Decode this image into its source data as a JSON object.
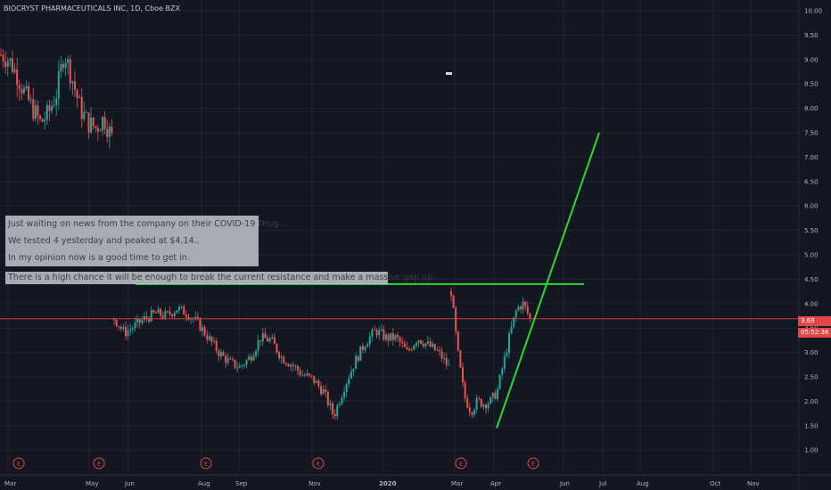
{
  "header": {
    "title": "BIOCRYST PHARMACEUTICALS INC, 1D, Cboe BZX"
  },
  "annotations": [
    "Just waiting on news from the company on their COVID-19 Drug...",
    "We tested 4 yesterday and peaked at $4.14..",
    "In my opinion now is a good time to get in.",
    "There is a high chance it will be enough to break the current resistance and make a massive gap up."
  ],
  "price_axis": {
    "current_price_label": "3.69",
    "countdown_label": "05:52:36"
  },
  "colors": {
    "background": "#131722",
    "grid": "#1f2430",
    "up": "#26a69a",
    "down": "#ef5350",
    "trendline": "#2ed82e",
    "price_line": "#e04848",
    "earnings": "#e04848"
  },
  "chart_data": {
    "type": "candlestick",
    "title": "BIOCRYST PHARMACEUTICALS INC, 1D, Cboe BZX",
    "ylim": [
      0.7,
      10.2
    ],
    "y_ticks": [
      "10.00",
      "9.50",
      "9.00",
      "8.50",
      "8.00",
      "7.50",
      "7.00",
      "6.50",
      "6.00",
      "5.50",
      "5.00",
      "4.50",
      "4.00",
      "3.50",
      "3.00",
      "2.50",
      "2.00",
      "1.50",
      "1.00"
    ],
    "x_ticks": [
      "Mar",
      "May",
      "Jun",
      "Aug",
      "Sep",
      "Nov",
      "2020",
      "Mar",
      "Apr",
      "Jun",
      "Jul",
      "Aug",
      "Oct",
      "Nov"
    ],
    "grid": true,
    "current_price": 3.69,
    "earnings_markers": [
      "E",
      "E",
      "E",
      "E",
      "E",
      "E"
    ],
    "segments": [
      {
        "name": "",
        "from": "Mar",
        "to": "May",
        "path": [
          9.1,
          9.0,
          8.7,
          8.3,
          8.0,
          7.7,
          7.9,
          8.3,
          9.15,
          8.6,
          8.0,
          7.7,
          7.6,
          7.8,
          7.4
        ]
      },
      {
        "name": "",
        "from": "Jun",
        "to": "Mar",
        "path": [
          3.7,
          3.4,
          3.55,
          3.7,
          3.8,
          3.75,
          3.9,
          3.8,
          3.6,
          3.3,
          3.0,
          2.8,
          2.7,
          2.9,
          3.3,
          3.25,
          2.9,
          2.75,
          2.55,
          2.45,
          2.2,
          1.7,
          2.3,
          2.8,
          3.2,
          3.45,
          3.3,
          3.3,
          3.0,
          3.3,
          3.15,
          3.0,
          2.7
        ]
      },
      {
        "name": "",
        "from": "Mar",
        "to": "Apr",
        "path": [
          4.25,
          3.0,
          2.1,
          1.8,
          2.0,
          1.95,
          2.0,
          2.2,
          2.8,
          3.4,
          3.9,
          4.0,
          3.69
        ]
      }
    ],
    "drawings": [
      {
        "kind": "horizontal",
        "label": "resistance",
        "y": 4.4,
        "from_x": "Jun",
        "to_x": "Jul"
      },
      {
        "kind": "trendline",
        "from": {
          "x": "Apr",
          "y": 1.45
        },
        "to": {
          "x": "Jul",
          "y": 7.5
        }
      }
    ]
  }
}
